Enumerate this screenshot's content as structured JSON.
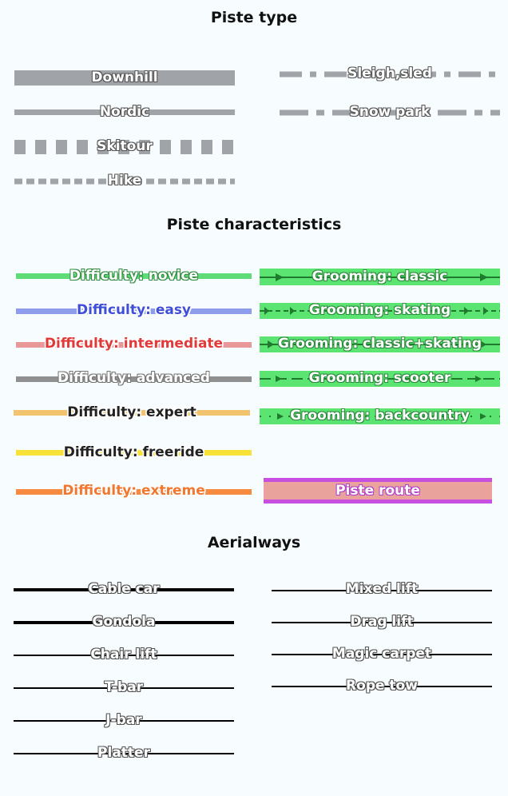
{
  "sections": {
    "piste_type": "Piste type",
    "piste_characteristics": "Piste characteristics",
    "aerialways": "Aerialways"
  },
  "piste_type": {
    "downhill": "Downhill",
    "nordic": "Nordic",
    "skitour": "Skitour",
    "hike": "Hike",
    "sleigh": "Sleigh,sled",
    "snowpark": "Snow park"
  },
  "difficulty": {
    "novice": "Difficulty: novice",
    "easy": "Difficulty: easy",
    "intermediate": "Difficulty: intermediate",
    "advanced": "Difficulty: advanced",
    "expert": "Difficulty: expert",
    "freeride": "Difficulty: freeride",
    "extreme": "Difficulty: extreme"
  },
  "grooming": {
    "classic": "Grooming: classic",
    "skating": "Grooming: skating",
    "classic_skating": "Grooming: classic+skating",
    "scooter": "Grooming: scooter",
    "backcountry": "Grooming: backcountry",
    "route": "Piste route"
  },
  "aerialways": {
    "cable_car": "Cable car",
    "gondola": "Gondola",
    "chair_lift": "Chair lift",
    "t_bar": "T-bar",
    "j_bar": "J-bar",
    "platter": "Platter",
    "mixed_lift": "Mixed lift",
    "drag_lift": "Drag lift",
    "magic_carpet": "Magic carpet",
    "rope_tow": "Rope tow"
  },
  "colors": {
    "piste_gray": "#a0a4a8",
    "novice": "#5fdc78",
    "easy": "#8e9cec",
    "intermediate": "#e89898",
    "advanced": "#909090",
    "expert": "#f2c470",
    "freeride": "#f8e238",
    "extreme": "#f68a40",
    "grooming_bg": "#5ce472",
    "grooming_line": "#1f7a2e",
    "route_fill": "#eaa29c",
    "route_border": "#c64fe0",
    "lift": "#000000"
  }
}
